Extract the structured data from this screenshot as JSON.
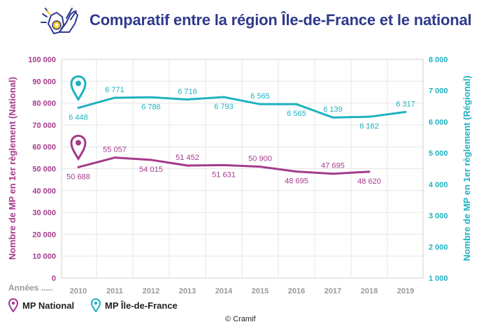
{
  "header": {
    "title": "Comparatif entre la région Île-de-France et le national",
    "logo_icon": "gloves-hands-icon"
  },
  "colors": {
    "national": "#a53a8c",
    "regional": "#1fb2c1",
    "title": "#2e3a8c",
    "grid": "#e6e6e6",
    "axis_label": "#999999"
  },
  "chart_data": {
    "type": "line",
    "categories": [
      "2010",
      "2011",
      "2012",
      "2013",
      "2014",
      "2015",
      "2016",
      "2017",
      "2018",
      "2019"
    ],
    "xlabel": "Années .....",
    "series": [
      {
        "name": "MP National",
        "axis": "left",
        "values": [
          50688,
          55057,
          54015,
          51452,
          51631,
          50900,
          48695,
          47695,
          48620,
          null
        ],
        "labels": [
          "50 688",
          "55 057",
          "54 015",
          "51 452",
          "51 631",
          "50 900",
          "48 695",
          "47 695",
          "48 620",
          ""
        ],
        "label_pos": [
          "below",
          "above",
          "below",
          "above",
          "below",
          "above",
          "below",
          "above",
          "below",
          ""
        ]
      },
      {
        "name": "MP Île-de-France",
        "axis": "right",
        "values": [
          6448,
          6771,
          6786,
          6716,
          6793,
          6565,
          6565,
          6139,
          6162,
          6317
        ],
        "labels": [
          "6 448",
          "6 771",
          "6 786",
          "6 716",
          "6 793",
          "6 565",
          "6 565",
          "6 139",
          "6 162",
          "6 317"
        ],
        "label_pos": [
          "below",
          "above",
          "below",
          "above",
          "below",
          "above",
          "below",
          "above",
          "below",
          "above"
        ]
      }
    ],
    "y_left": {
      "label": "Nombre de MP en 1er règlement (National)",
      "ylim": [
        0,
        100000
      ],
      "ticks": [
        "0",
        "10 000",
        "20 000",
        "30 000",
        "40 000",
        "50 000",
        "60 000",
        "70 000",
        "80 000",
        "90 000",
        "100 000"
      ]
    },
    "y_right": {
      "label": "Nombre de MP en 1er règlement (Régional)",
      "ylim": [
        1000,
        8000
      ],
      "ticks": [
        "1 000",
        "2 000",
        "3 000",
        "4 000",
        "5 000",
        "6 000",
        "7 000",
        "8 000"
      ]
    },
    "legend": [
      {
        "label": "MP National",
        "icon": "map-pin-icon"
      },
      {
        "label": "MP Île-de-France",
        "icon": "map-pin-icon"
      }
    ],
    "grid": true
  },
  "footer": {
    "copyright": "© Cramif"
  }
}
